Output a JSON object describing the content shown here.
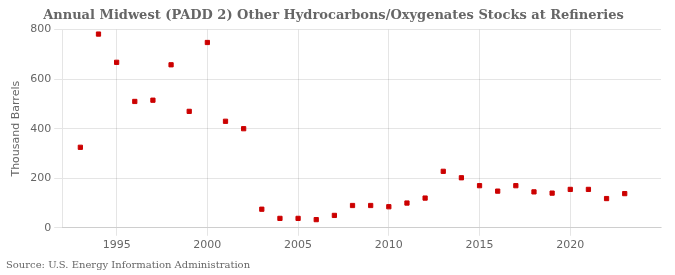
{
  "chart_data": {
    "type": "scatter",
    "title": "Annual Midwest (PADD 2) Other Hydrocarbons/Oxygenates Stocks at Refineries",
    "ylabel": "Thousand Barrels",
    "annotations": [
      "Source: U.S. Energy Information Administration"
    ],
    "x": [
      1993,
      1994,
      1995,
      1996,
      1997,
      1998,
      1999,
      2000,
      2001,
      2002,
      2003,
      2004,
      2005,
      2006,
      2007,
      2008,
      2009,
      2010,
      2011,
      2012,
      2013,
      2014,
      2015,
      2016,
      2017,
      2018,
      2019,
      2020,
      2021,
      2022,
      2023
    ],
    "values": [
      325,
      782,
      668,
      510,
      515,
      658,
      470,
      748,
      430,
      400,
      75,
      38,
      38,
      33,
      50,
      90,
      90,
      85,
      100,
      120,
      228,
      202,
      170,
      148,
      170,
      145,
      140,
      155,
      155,
      118,
      138
    ],
    "color": "#cc0000",
    "marker": "square",
    "xlim": [
      1992,
      2025
    ],
    "ylim": [
      0,
      800
    ],
    "xticks": [
      1995,
      2000,
      2005,
      2010,
      2015,
      2020
    ],
    "yticks": [
      0,
      200,
      400,
      600,
      800
    ],
    "grid": true
  }
}
